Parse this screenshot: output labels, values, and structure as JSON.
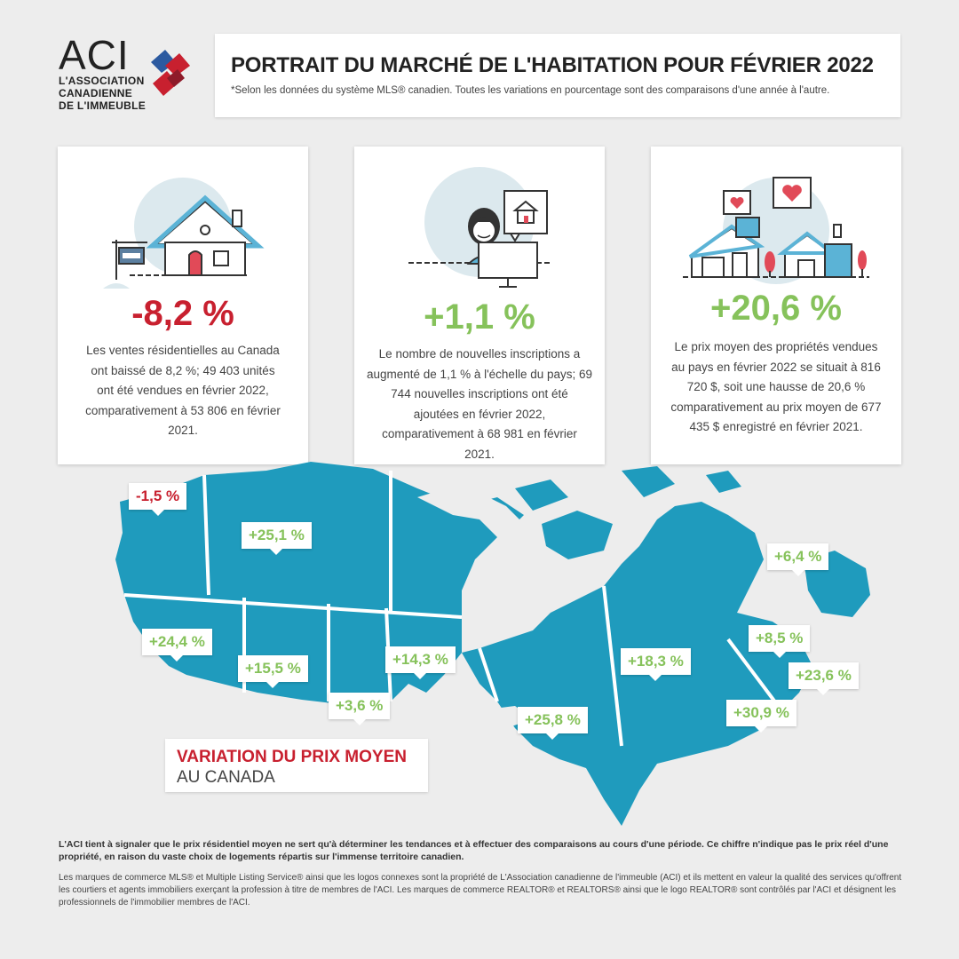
{
  "logo": {
    "name": "ACI",
    "line1": "L'ASSOCIATION",
    "line2": "CANADIENNE",
    "line3": "DE L'IMMEUBLE",
    "colors": {
      "red": "#c8202f",
      "blue": "#2c5aa0",
      "dark_red": "#8e1b2a"
    }
  },
  "header": {
    "title": "PORTRAIT DU MARCHÉ DE L'HABITATION POUR FÉVRIER 2022",
    "subtitle": "*Selon les données du système MLS® canadien. Toutes les variations en pourcentage sont des comparaisons d'une année à l'autre."
  },
  "cards": [
    {
      "icon": "house-for-sale-icon",
      "value": "-8,2 %",
      "text": "Les ventes résidentielles au Canada ont baissé de 8,2 %; 49 403 unités ont été vendues en février 2022, comparativement à 53 806 en février 2021."
    },
    {
      "icon": "person-at-computer-icon",
      "value": "+1,1 %",
      "text": "Le nombre de nouvelles inscriptions a augmenté de 1,1 % à l'échelle du pays; 69 744 nouvelles inscriptions ont été ajoutées en février 2022, comparativement à 68 981 en février 2021."
    },
    {
      "icon": "houses-with-hearts-icon",
      "value": "+20,6 %",
      "text": "Le prix moyen des propriétés vendues au pays en février 2022 se situait à 816 720 $, soit une hausse de 20,6 % comparativement au prix moyen de 677 435 $ enregistré en février 2021."
    }
  ],
  "map": {
    "colors": {
      "land": "#1f9bbd",
      "border": "#ffffff",
      "negative": "#c8202f",
      "positive": "#86c25b"
    },
    "tags": {
      "yukon": "-1,5 %",
      "nwt": "+25,1 %",
      "bc": "+24,4 %",
      "alberta": "+15,5 %",
      "saskatchewan": "+3,6 %",
      "manitoba": "+14,3 %",
      "ontario": "+25,8 %",
      "quebec": "+18,3 %",
      "newfoundland": "+6,4 %",
      "pei": "+8,5 %",
      "nova_scotia": "+23,6 %",
      "new_brunswick": "+30,9 %"
    }
  },
  "legend": {
    "line1": "VARIATION DU PRIX MOYEN",
    "line2": "AU CANADA"
  },
  "footer": {
    "disclaimer": "L'ACI tient à signaler que le prix résidentiel moyen ne sert qu'à déterminer les tendances et à effectuer des comparaisons au cours d'une période. Ce chiffre n'indique pas le prix réel d'une propriété, en raison du vaste choix de logements répartis sur l'immense territoire canadien.",
    "trademarks": "Les marques de commerce MLS® et Multiple Listing Service® ainsi que les logos connexes sont la propriété de L'Association canadienne de l'immeuble (ACI) et ils mettent en valeur la qualité des services qu'offrent les courtiers et agents immobiliers exerçant la profession à titre de membres de l'ACI. Les marques de commerce REALTOR® et REALTORS® ainsi que le logo REALTOR® sont contrôlés par l'ACI et désignent les professionnels de l'immobilier membres de l'ACI."
  }
}
